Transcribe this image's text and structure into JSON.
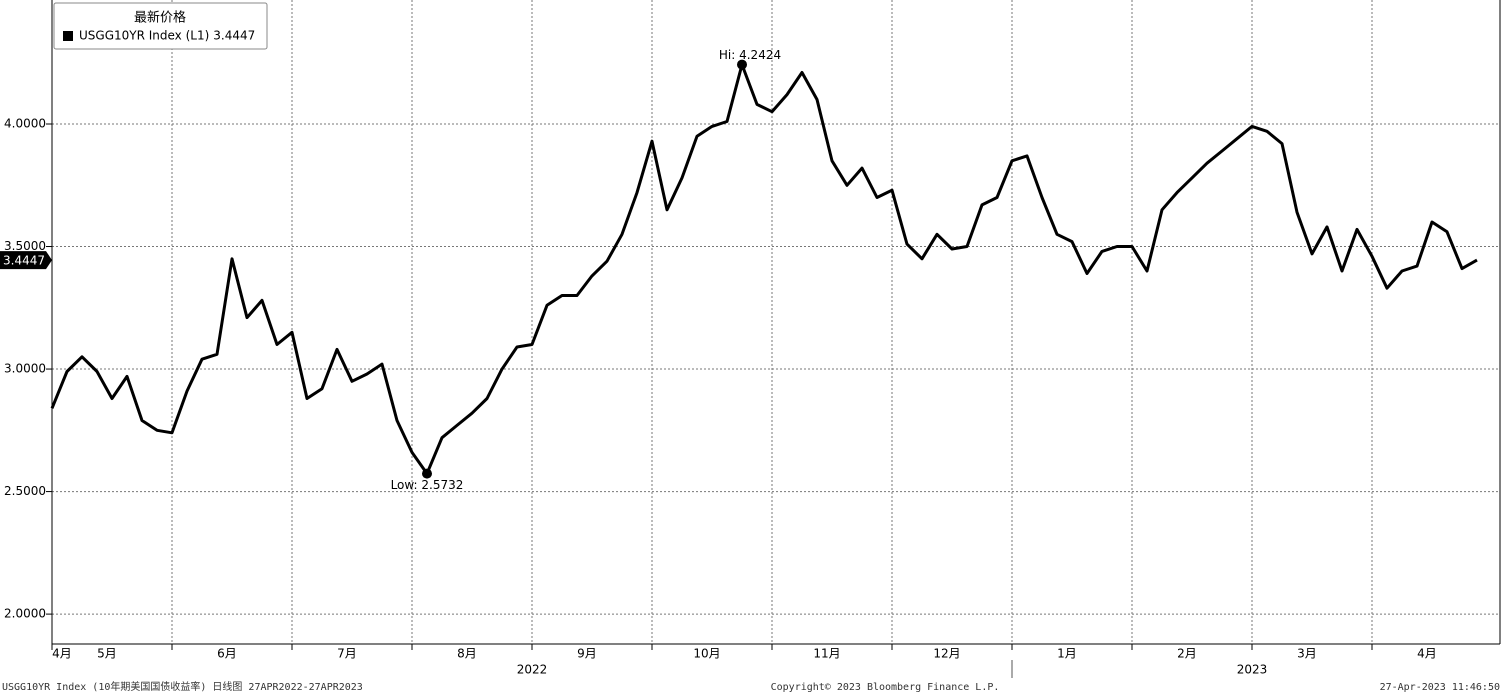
{
  "chart_data": {
    "type": "line",
    "legend_title": "最新价格",
    "series": [
      {
        "name": "USGG10YR Index (L1)",
        "color": "#000000",
        "values": [
          2.84,
          2.99,
          3.05,
          2.99,
          2.88,
          2.97,
          2.79,
          2.75,
          2.74,
          2.91,
          3.04,
          3.06,
          3.45,
          3.21,
          3.28,
          3.1,
          3.15,
          2.88,
          2.92,
          3.08,
          2.95,
          2.98,
          3.02,
          2.79,
          2.66,
          2.5732,
          2.72,
          2.77,
          2.82,
          2.88,
          3.0,
          3.09,
          3.1,
          3.26,
          3.3,
          3.3,
          3.38,
          3.44,
          3.55,
          3.72,
          3.93,
          3.65,
          3.78,
          3.95,
          3.99,
          4.01,
          4.2424,
          4.08,
          4.05,
          4.12,
          4.21,
          4.1,
          3.85,
          3.75,
          3.82,
          3.7,
          3.73,
          3.51,
          3.45,
          3.55,
          3.49,
          3.5,
          3.67,
          3.7,
          3.85,
          3.87,
          3.7,
          3.55,
          3.52,
          3.39,
          3.48,
          3.5,
          3.5,
          3.4,
          3.65,
          3.72,
          3.78,
          3.84,
          3.89,
          3.94,
          3.99,
          3.97,
          3.92,
          3.64,
          3.47,
          3.58,
          3.4,
          3.57,
          3.46,
          3.33,
          3.4,
          3.42,
          3.6,
          3.56,
          3.41,
          3.4447
        ]
      }
    ],
    "categories": [
      null,
      "4月",
      null,
      null,
      "5月",
      null,
      null,
      null,
      null,
      null,
      null,
      null,
      "6月",
      null,
      null,
      null,
      null,
      null,
      null,
      null,
      "7月",
      null,
      null,
      null,
      null,
      null,
      null,
      null,
      "8月",
      null,
      null,
      null,
      null,
      null,
      null,
      null,
      "9月",
      null,
      null,
      null,
      null,
      null,
      null,
      null,
      "10月",
      null,
      null,
      null,
      null,
      null,
      null,
      null,
      "11月",
      null,
      null,
      null,
      null,
      null,
      null,
      null,
      "12月",
      null,
      null,
      null,
      null,
      null,
      null,
      null,
      "1月",
      null,
      null,
      null,
      null,
      null,
      null,
      null,
      "2月",
      null,
      null,
      null,
      null,
      null,
      null,
      null,
      "3月",
      null,
      null,
      null,
      null,
      null,
      null,
      null,
      "4月",
      null,
      null,
      null
    ],
    "year_categories": [
      null,
      null,
      null,
      null,
      null,
      null,
      null,
      null,
      null,
      null,
      null,
      null,
      null,
      null,
      null,
      null,
      null,
      null,
      null,
      null,
      null,
      null,
      null,
      null,
      null,
      null,
      null,
      null,
      null,
      null,
      null,
      null,
      "2022",
      null,
      null,
      null,
      null,
      null,
      null,
      null,
      null,
      null,
      null,
      null,
      null,
      null,
      null,
      null,
      null,
      null,
      null,
      null,
      null,
      null,
      null,
      null,
      null,
      null,
      null,
      null,
      null,
      null,
      null,
      null,
      null,
      null,
      null,
      null,
      null,
      null,
      null,
      null,
      null,
      null,
      null,
      null,
      null,
      null,
      null,
      null,
      "2023",
      null,
      null,
      null,
      null,
      null,
      null,
      null,
      null,
      null,
      null,
      null,
      null,
      null,
      null,
      null
    ],
    "ylim": [
      1.878,
      4.506
    ],
    "yticks": [
      {
        "value": 2,
        "label": "2.0000"
      },
      {
        "value": 2.5,
        "label": "2.5000"
      },
      {
        "value": 3,
        "label": "3.0000"
      },
      {
        "value": 3.5,
        "label": "3.5000"
      },
      {
        "value": 4,
        "label": "4.0000"
      }
    ],
    "grid": true,
    "high_label": "Hi: 4.2424",
    "low_label": "Low: 2.5732",
    "footer": {
      "left": "USGG10YR Index (10年期美国国债收益率)  日线图 27APR2022-27APR2023",
      "center": "Copyright© 2023 Bloomberg Finance L.P.",
      "right": "27-Apr-2023 11:46:50"
    }
  }
}
